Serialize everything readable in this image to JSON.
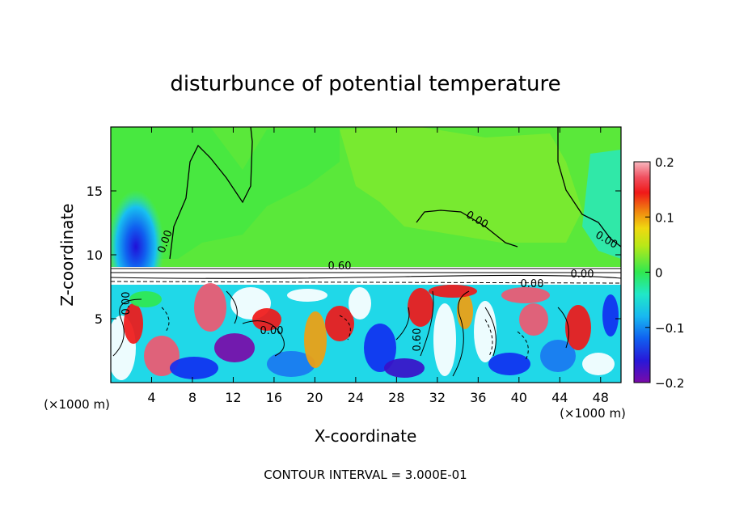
{
  "chart_data": {
    "type": "heatmap",
    "title": "disturbunce of potential temperature",
    "xlabel": "X-coordinate",
    "ylabel": "Z-coordinate",
    "x_unit_note": "(×1000 m)",
    "z_unit_note": "(×1000 m)",
    "xlim": [
      0,
      50
    ],
    "ylim": [
      0,
      20
    ],
    "x_ticks": [
      4,
      8,
      12,
      16,
      20,
      24,
      28,
      32,
      36,
      40,
      44,
      48
    ],
    "y_ticks": [
      5,
      10,
      15
    ],
    "colorbar": {
      "range": [
        -0.2,
        0.2
      ],
      "tick_labels": [
        "0.2",
        "0.1",
        "0",
        "−0.1",
        "−0.2"
      ],
      "colors": [
        "#7a0aa8",
        "#3a10c8",
        "#1030f0",
        "#1a78f0",
        "#18b8f0",
        "#18e0e0",
        "#20e8a0",
        "#30e850",
        "#60ea20",
        "#b0e818",
        "#f0e010",
        "#f0a010",
        "#f06010",
        "#f01818",
        "#f05870",
        "#f8a0b0"
      ]
    },
    "contour_labels": [
      "0.00",
      "0.00",
      "0.60",
      "0.00",
      "0.00",
      "0.60",
      "0.00",
      "0.00",
      "0.00"
    ],
    "footer": "CONTOUR INTERVAL = 3.000E-01"
  }
}
